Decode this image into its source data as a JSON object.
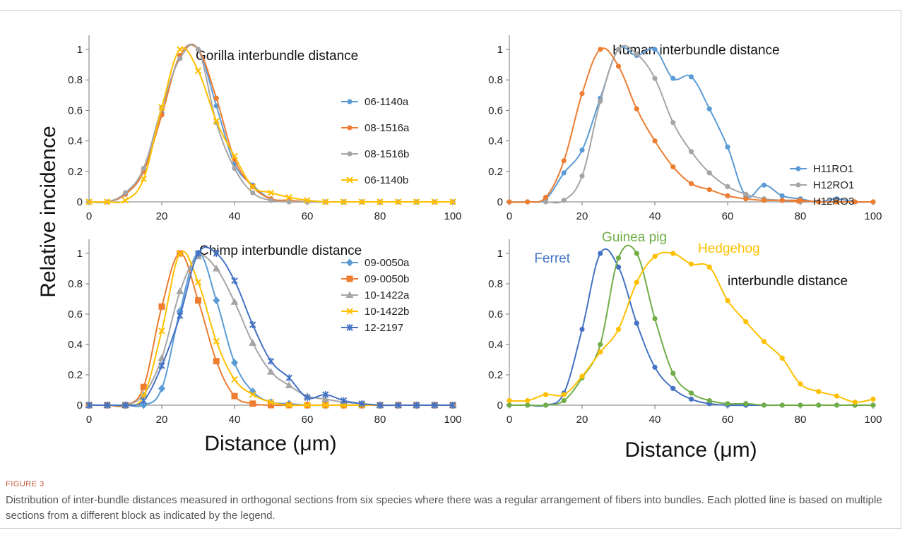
{
  "axis_titles": {
    "ylabel": "Relative incidence",
    "xlabel": "Distance (μm)"
  },
  "caption": {
    "label": "FIGURE 3",
    "text": "Distribution of inter-bundle distances measured in orthogonal sections from six species where there was a regular arrangement of fibers into bundles. Each plotted line is based on multiple sections from a different block as indicated by the legend."
  },
  "chart_data": [
    {
      "type": "line",
      "title": "Gorilla interbundle distance",
      "xlabel": "",
      "ylabel": "",
      "xlim": [
        0,
        100
      ],
      "ylim": [
        0,
        1
      ],
      "xticks": [
        "0",
        "20",
        "40",
        "60",
        "80",
        "100"
      ],
      "yticks": [
        "0",
        "0.2",
        "0.4",
        "0.6",
        "0.8",
        "1"
      ],
      "legend": "right",
      "x": [
        0,
        5,
        10,
        15,
        20,
        25,
        30,
        35,
        40,
        45,
        50,
        55,
        60,
        65,
        70,
        75,
        80,
        85,
        90,
        95,
        100
      ],
      "series": [
        {
          "name": "06-1140a",
          "color": "#5b9bd5",
          "marker": "circle",
          "values": [
            0,
            0,
            0.05,
            0.2,
            0.58,
            0.96,
            1.0,
            0.63,
            0.25,
            0.11,
            0.02,
            0.01,
            0,
            0,
            0,
            0,
            0,
            0,
            0,
            0,
            0
          ]
        },
        {
          "name": "08-1516a",
          "color": "#ed7d31",
          "marker": "circle",
          "values": [
            0,
            0,
            0.05,
            0.2,
            0.57,
            0.96,
            1.0,
            0.68,
            0.28,
            0.1,
            0.02,
            0.01,
            0,
            0,
            0,
            0,
            0,
            0,
            0,
            0,
            0
          ]
        },
        {
          "name": "08-1516b",
          "color": "#a5a5a5",
          "marker": "circle",
          "values": [
            0,
            0,
            0.06,
            0.22,
            0.62,
            0.94,
            1.0,
            0.52,
            0.22,
            0.06,
            0.01,
            0,
            0,
            0,
            0,
            0,
            0,
            0,
            0,
            0,
            0
          ]
        },
        {
          "name": "06-1140b",
          "color": "#ffc000",
          "marker": "x",
          "values": [
            0,
            0,
            0.01,
            0.15,
            0.62,
            1.0,
            0.86,
            0.53,
            0.3,
            0.1,
            0.06,
            0.03,
            0.01,
            0,
            0,
            0,
            0,
            0,
            0,
            0,
            0
          ]
        }
      ]
    },
    {
      "type": "line",
      "title": "Human interbundle distance",
      "xlabel": "",
      "ylabel": "",
      "xlim": [
        0,
        100
      ],
      "ylim": [
        0,
        1
      ],
      "xticks": [
        "0",
        "20",
        "40",
        "60",
        "80",
        "100"
      ],
      "yticks": [
        "0",
        "0.2",
        "0.4",
        "0.6",
        "0.8",
        "1"
      ],
      "legend": "right",
      "x": [
        0,
        5,
        10,
        15,
        20,
        25,
        30,
        35,
        40,
        45,
        50,
        55,
        60,
        65,
        70,
        75,
        80,
        85,
        90,
        95,
        100
      ],
      "series": [
        {
          "name": "H11RO1",
          "color": "#5b9bd5",
          "marker": "circle",
          "values": [
            0,
            0,
            0.02,
            0.19,
            0.34,
            0.68,
            1.0,
            0.96,
            1.0,
            0.81,
            0.82,
            0.61,
            0.36,
            0.04,
            0.11,
            0.04,
            0.02,
            0,
            0.02,
            0,
            0
          ]
        },
        {
          "name": "H12RO1",
          "color": "#a5a5a5",
          "marker": "circle",
          "values": [
            0,
            0,
            0,
            0.01,
            0.17,
            0.66,
            1.0,
            0.97,
            0.81,
            0.52,
            0.33,
            0.19,
            0.1,
            0.05,
            0.02,
            0.01,
            0,
            0,
            0,
            0,
            0
          ]
        },
        {
          "name": "H12RO3",
          "color": "#ed7d31",
          "marker": "circle",
          "values": [
            0,
            0,
            0.03,
            0.27,
            0.71,
            1.0,
            0.89,
            0.61,
            0.4,
            0.23,
            0.12,
            0.08,
            0.04,
            0.02,
            0.01,
            0.01,
            0.01,
            0,
            0,
            0,
            0
          ]
        }
      ]
    },
    {
      "type": "line",
      "title": "Chimp interbundle distance",
      "xlabel": "",
      "ylabel": "",
      "xlim": [
        0,
        100
      ],
      "ylim": [
        0,
        1
      ],
      "xticks": [
        "0",
        "20",
        "40",
        "60",
        "80",
        "100"
      ],
      "yticks": [
        "0",
        "0.2",
        "0.4",
        "0.6",
        "0.8",
        "1"
      ],
      "legend": "right",
      "x": [
        0,
        5,
        10,
        15,
        20,
        25,
        30,
        35,
        40,
        45,
        50,
        55,
        60,
        65,
        70,
        75,
        80,
        85,
        90,
        95,
        100
      ],
      "series": [
        {
          "name": "09-0050a",
          "color": "#5b9bd5",
          "marker": "diamond",
          "values": [
            0,
            0,
            0,
            0,
            0.11,
            0.62,
            1.0,
            0.69,
            0.28,
            0.09,
            0.02,
            0.01,
            0,
            0,
            0,
            0,
            0,
            0,
            0,
            0,
            0
          ]
        },
        {
          "name": "09-0050b",
          "color": "#ed7d31",
          "marker": "square",
          "values": [
            0,
            0,
            0,
            0.12,
            0.65,
            1.0,
            0.69,
            0.29,
            0.06,
            0.01,
            0,
            0,
            0,
            0,
            0,
            0,
            0,
            0,
            0,
            0,
            0
          ]
        },
        {
          "name": "10-1422a",
          "color": "#a5a5a5",
          "marker": "triangle",
          "values": [
            0,
            0,
            0,
            0.07,
            0.31,
            0.75,
            0.98,
            0.9,
            0.68,
            0.41,
            0.22,
            0.13,
            0.06,
            0.04,
            0.02,
            0.01,
            0,
            0,
            0,
            0,
            0
          ]
        },
        {
          "name": "10-1422b",
          "color": "#ffc000",
          "marker": "x",
          "values": [
            0,
            0,
            0,
            0.06,
            0.49,
            1.0,
            0.81,
            0.42,
            0.17,
            0.07,
            0.02,
            0,
            0,
            0,
            0,
            0,
            0,
            0,
            0,
            0,
            0
          ]
        },
        {
          "name": "12-2197",
          "color": "#4472c4",
          "marker": "star",
          "values": [
            0,
            0,
            0,
            0.03,
            0.26,
            0.59,
            1.0,
            1.0,
            0.82,
            0.53,
            0.29,
            0.18,
            0.05,
            0.07,
            0.03,
            0.01,
            0,
            0,
            0,
            0,
            0
          ]
        }
      ]
    },
    {
      "type": "line",
      "title": "interbundle distance",
      "xlabel": "",
      "ylabel": "",
      "xlim": [
        0,
        100
      ],
      "ylim": [
        0,
        1
      ],
      "xticks": [
        "0",
        "20",
        "40",
        "60",
        "80",
        "100"
      ],
      "yticks": [
        "0",
        "0.2",
        "0.4",
        "0.6",
        "0.8",
        "1"
      ],
      "legend": "inline labels",
      "x": [
        0,
        5,
        10,
        15,
        20,
        25,
        30,
        35,
        40,
        45,
        50,
        55,
        60,
        65,
        70,
        75,
        80,
        85,
        90,
        95,
        100
      ],
      "series": [
        {
          "name": "Ferret",
          "color": "#4472c4",
          "marker": "circle",
          "values": [
            0,
            0,
            0,
            0.08,
            0.5,
            1.0,
            0.91,
            0.54,
            0.25,
            0.11,
            0.04,
            0.01,
            0,
            0,
            0,
            0,
            0,
            0,
            0,
            0,
            0
          ]
        },
        {
          "name": "Guinea pig",
          "color": "#70ad47",
          "marker": "circle",
          "values": [
            0,
            0,
            0,
            0.03,
            0.18,
            0.4,
            0.97,
            1.0,
            0.57,
            0.21,
            0.08,
            0.03,
            0.01,
            0.01,
            0,
            0,
            0,
            0,
            0,
            0,
            0
          ]
        },
        {
          "name": "Hedgehog",
          "color": "#ffc000",
          "marker": "circle",
          "values": [
            0.03,
            0.03,
            0.07,
            0.07,
            0.19,
            0.35,
            0.5,
            0.81,
            0.98,
            1.0,
            0.93,
            0.91,
            0.69,
            0.55,
            0.42,
            0.31,
            0.14,
            0.09,
            0.06,
            0.02,
            0.04
          ]
        }
      ]
    }
  ]
}
